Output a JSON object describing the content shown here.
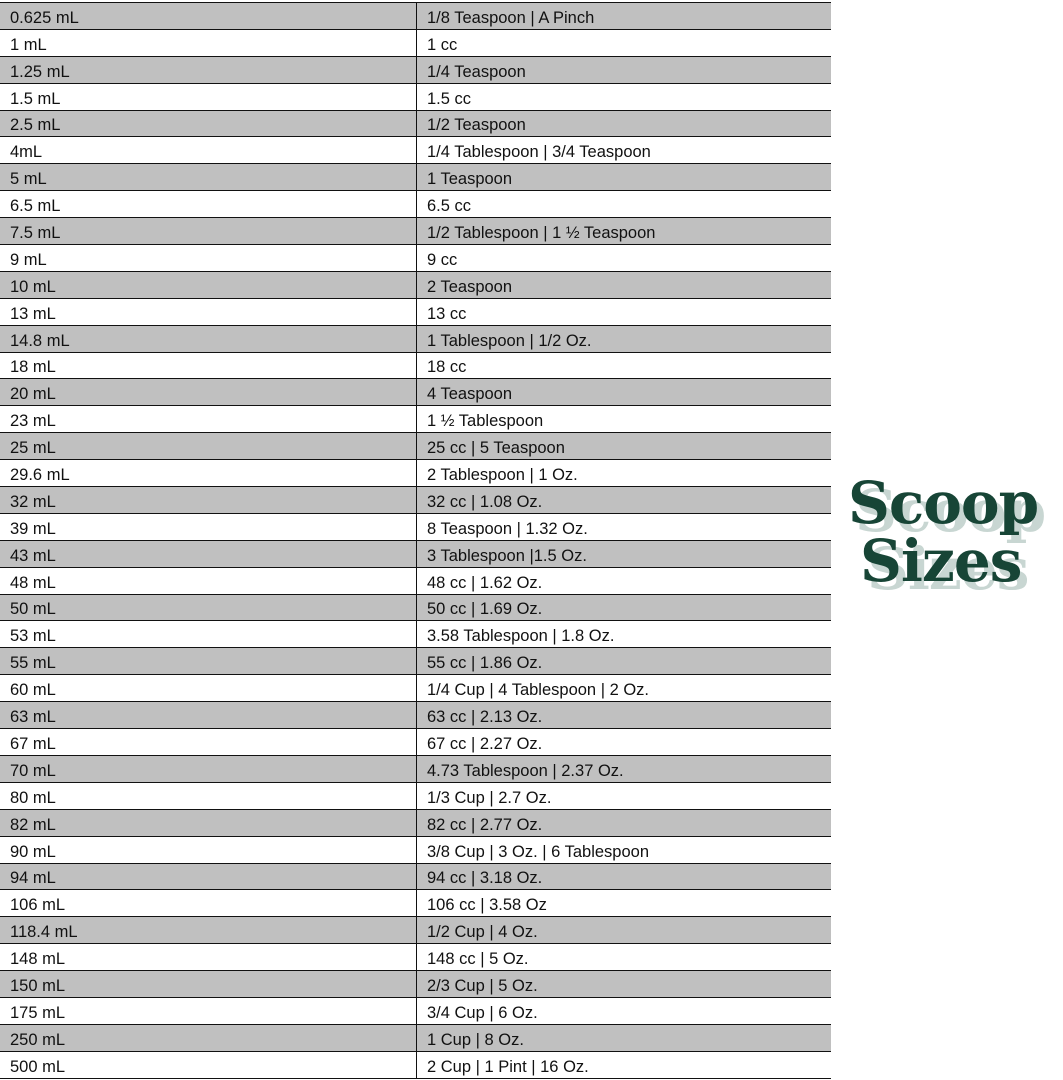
{
  "table": {
    "rows": [
      [
        "0.625 mL",
        "1/8 Teaspoon | A Pinch"
      ],
      [
        "1 mL",
        "1 cc"
      ],
      [
        "1.25 mL",
        "1/4 Teaspoon"
      ],
      [
        "1.5 mL",
        "1.5 cc"
      ],
      [
        "2.5 mL",
        "1/2 Teaspoon"
      ],
      [
        "4mL",
        "1/4 Tablespoon | 3/4 Teaspoon"
      ],
      [
        "5 mL",
        "1 Teaspoon"
      ],
      [
        "6.5 mL",
        "6.5 cc"
      ],
      [
        "7.5 mL",
        "1/2 Tablespoon | 1 ½ Teaspoon"
      ],
      [
        "9 mL",
        "9 cc"
      ],
      [
        "10 mL",
        "2 Teaspoon"
      ],
      [
        "13 mL",
        "13 cc"
      ],
      [
        "14.8 mL",
        "1 Tablespoon | 1/2 Oz."
      ],
      [
        "18 mL",
        "18 cc"
      ],
      [
        "20 mL",
        "4 Teaspoon"
      ],
      [
        "23 mL",
        "1 ½ Tablespoon"
      ],
      [
        "25 mL",
        "25 cc | 5 Teaspoon"
      ],
      [
        "29.6 mL",
        "2 Tablespoon | 1 Oz."
      ],
      [
        "32 mL",
        "32 cc | 1.08 Oz."
      ],
      [
        "39 mL",
        "8 Teaspoon | 1.32 Oz."
      ],
      [
        "43 mL",
        "3 Tablespoon |1.5 Oz."
      ],
      [
        "48 mL",
        "48 cc | 1.62 Oz."
      ],
      [
        "50 mL",
        "50 cc | 1.69 Oz."
      ],
      [
        "53 mL",
        "3.58 Tablespoon | 1.8 Oz."
      ],
      [
        "55 mL",
        "55 cc | 1.86 Oz."
      ],
      [
        "60 mL",
        "1/4 Cup | 4 Tablespoon | 2 Oz."
      ],
      [
        "63 mL",
        "63 cc | 2.13 Oz."
      ],
      [
        "67 mL",
        "67 cc | 2.27 Oz."
      ],
      [
        "70 mL",
        "4.73 Tablespoon | 2.37 Oz."
      ],
      [
        "80 mL",
        "1/3 Cup | 2.7 Oz."
      ],
      [
        "82 mL",
        "82 cc | 2.77 Oz."
      ],
      [
        "90 mL",
        "3/8 Cup | 3 Oz. | 6 Tablespoon"
      ],
      [
        "94 mL",
        "94 cc | 3.18 Oz."
      ],
      [
        "106 mL",
        "106 cc | 3.58 Oz"
      ],
      [
        "118.4 mL",
        "1/2 Cup | 4 Oz."
      ],
      [
        "148 mL",
        "148 cc | 5 Oz."
      ],
      [
        "150 mL",
        "2/3 Cup | 5 Oz."
      ],
      [
        "175 mL",
        "3/4 Cup | 6 Oz."
      ],
      [
        "250 mL",
        "1 Cup | 8 Oz."
      ],
      [
        "500 mL",
        "2 Cup | 1 Pint | 16 Oz."
      ]
    ],
    "stripe_color": "#c0c0c0"
  },
  "logo": {
    "line1": "Scoop",
    "line2": "Sizes",
    "color": "#174536",
    "shadow_color": "#c8d6d2"
  }
}
